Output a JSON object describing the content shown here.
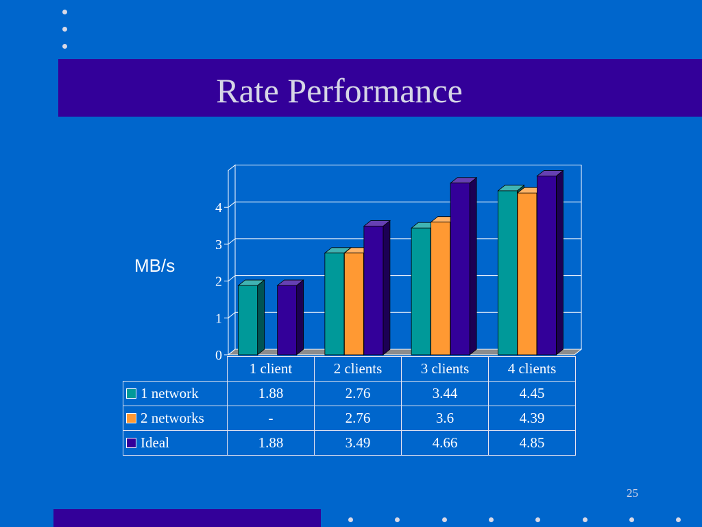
{
  "slide": {
    "title": "Rate Performance",
    "y_unit": "MB/s",
    "page_number": "25"
  },
  "colors": {
    "background": "#0066cc",
    "band": "#330099",
    "series": [
      "#009999",
      "#ff9933",
      "#330099"
    ]
  },
  "chart_data": {
    "type": "bar",
    "categories": [
      "1 client",
      "2 clients",
      "3 clients",
      "4 clients"
    ],
    "series": [
      {
        "name": "1 network",
        "values": [
          1.88,
          2.76,
          3.44,
          4.45
        ],
        "labels": [
          "1.88",
          "2.76",
          "3.44",
          "4.45"
        ]
      },
      {
        "name": "2 networks",
        "values": [
          null,
          2.76,
          3.6,
          4.39
        ],
        "labels": [
          "-",
          "2.76",
          "3.6",
          "4.39"
        ]
      },
      {
        "name": "Ideal",
        "values": [
          1.88,
          3.49,
          4.66,
          4.85
        ],
        "labels": [
          "1.88",
          "3.49",
          "4.66",
          "4.85"
        ]
      }
    ],
    "ylabel": "MB/s",
    "ylim": [
      0,
      5
    ],
    "yticks": [
      "0",
      "1",
      "2",
      "3",
      "4"
    ],
    "grid": true,
    "legend": "data table below chart"
  }
}
